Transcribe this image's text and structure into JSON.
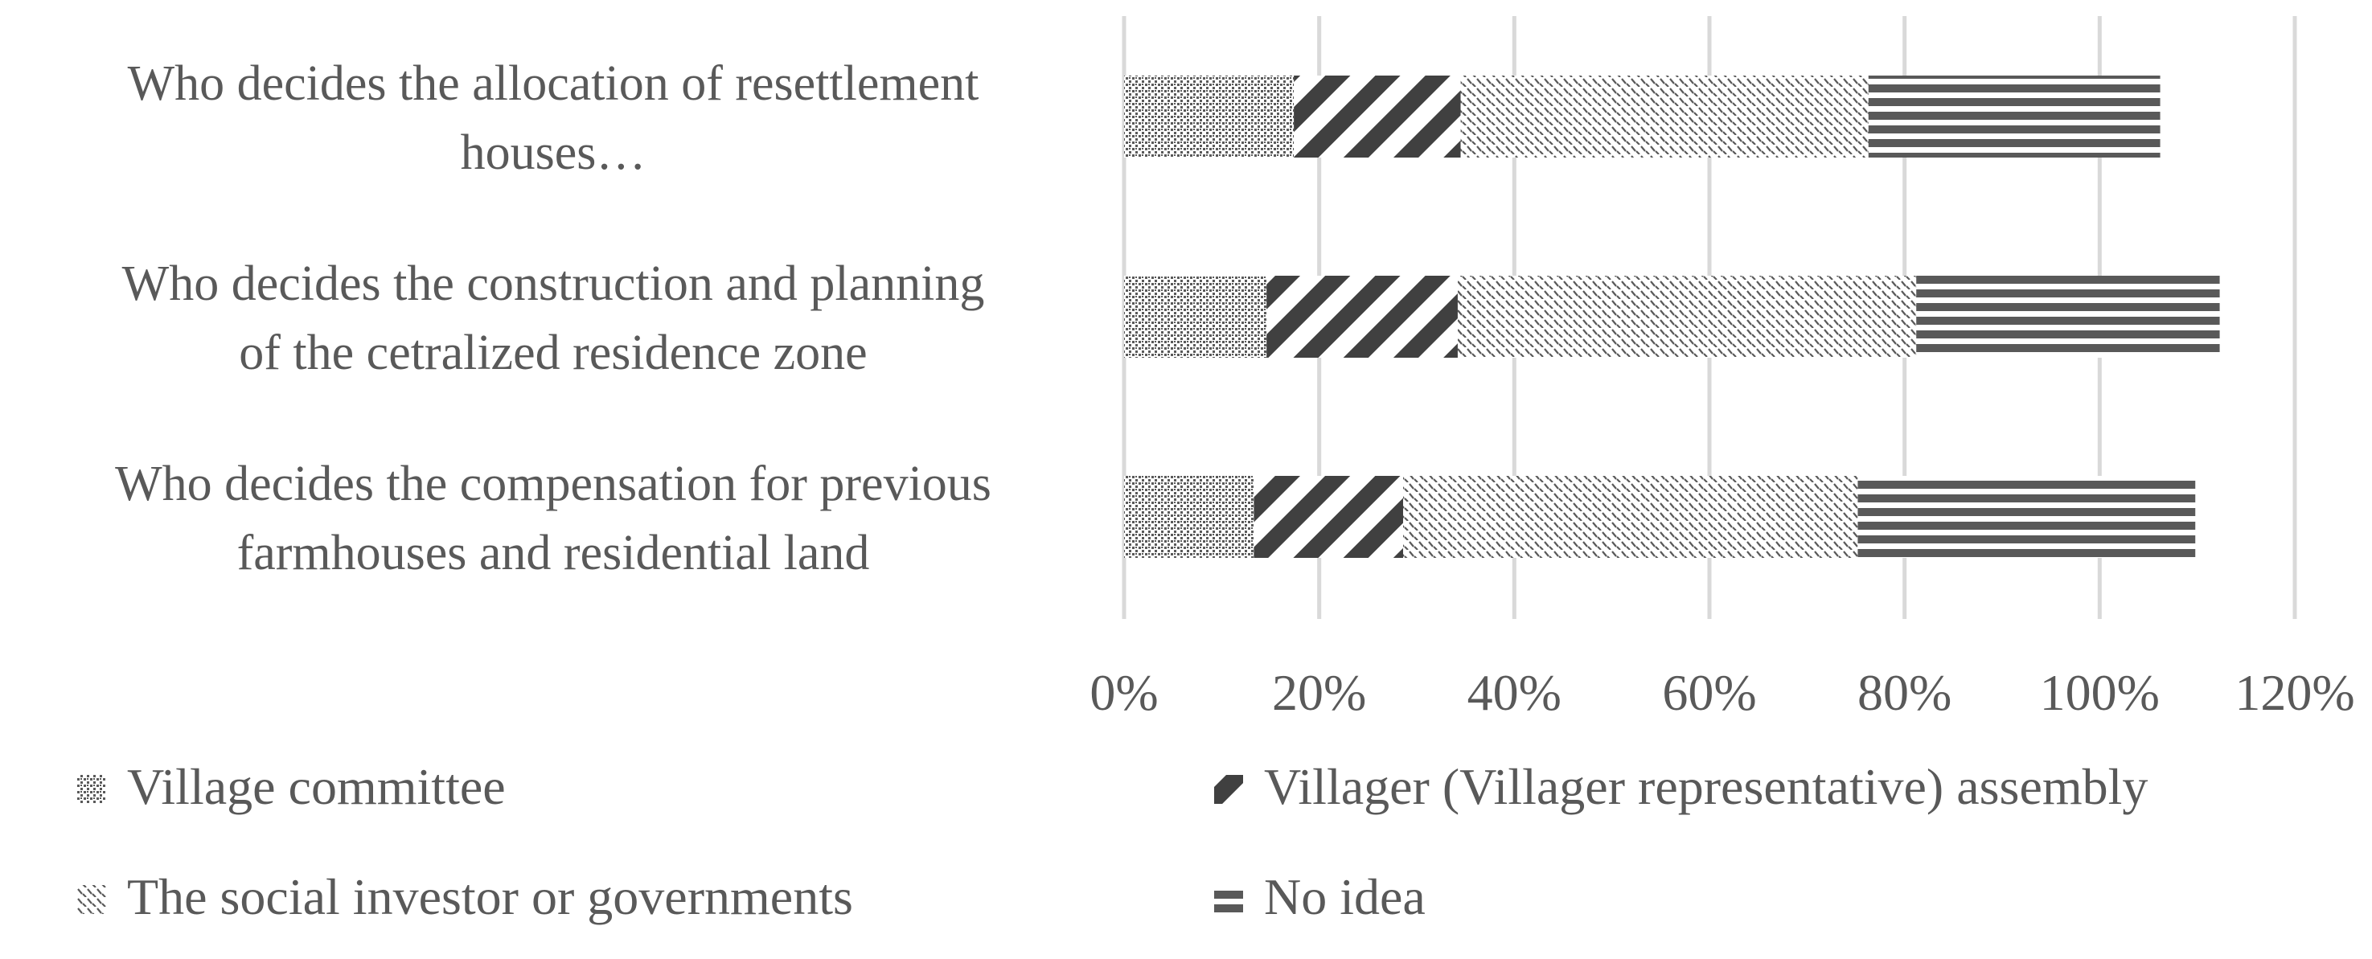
{
  "colors": {
    "text": "#595959",
    "gridline": "#d9d9d9",
    "pattern_ink": "#595959",
    "village_committee": "#595959",
    "villager_assembly": "#404040",
    "social_investor": "#595959",
    "no_idea": "#595959"
  },
  "chart_data": {
    "type": "bar",
    "orientation": "horizontal",
    "stacked": true,
    "title": "",
    "xlabel": "",
    "ylabel": "",
    "xlim": [
      0,
      120
    ],
    "x_ticks": [
      "0%",
      "20%",
      "40%",
      "60%",
      "80%",
      "100%",
      "120%"
    ],
    "x_tick_values": [
      0,
      20,
      40,
      60,
      80,
      100,
      120
    ],
    "grid": "vertical gridlines",
    "legend_position": "bottom",
    "categories": [
      "Who decides the allocation of resettlement houses…",
      "Who decides the construction and planning of the cetralized residence zone",
      "Who decides the compensation for previous farmhouses and residential land"
    ],
    "category_lines": [
      [
        "Who decides the allocation of resettlement",
        "houses…"
      ],
      [
        "Who decides the construction and planning",
        "of the cetralized residence zone"
      ],
      [
        "Who decides the compensation for previous",
        "farmhouses and residential land"
      ]
    ],
    "series": [
      {
        "name": "Village committee",
        "pattern": "dots",
        "values": [
          17.4,
          14.6,
          13.3
        ]
      },
      {
        "name": "Villager (Villager representative) assembly",
        "pattern": "wide-diagonal",
        "values": [
          17.1,
          19.6,
          15.3
        ]
      },
      {
        "name": "The social investor or governments",
        "pattern": "dashed-diagonal",
        "values": [
          41.8,
          47.0,
          46.6
        ]
      },
      {
        "name": "No idea",
        "pattern": "horizontal-stripes",
        "values": [
          29.9,
          31.1,
          34.6
        ]
      }
    ]
  }
}
